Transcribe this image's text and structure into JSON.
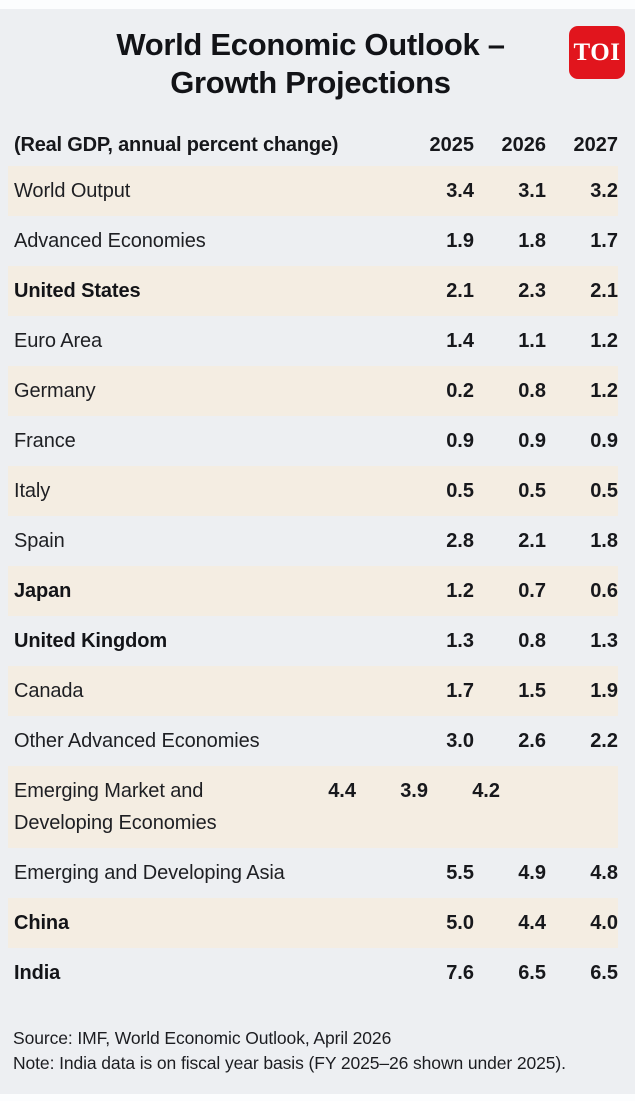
{
  "page": {
    "title_line1": "World Economic Outlook –",
    "title_line2": "Growth Projections",
    "logo_text": "TOI"
  },
  "table_header": {
    "label": "(Real GDP, annual percent change)",
    "years": [
      "2025",
      "2026",
      "2027"
    ]
  },
  "chart_data": {
    "type": "table",
    "title": "World Economic Outlook – Growth Projections",
    "subtitle": "(Real GDP, annual percent change)",
    "columns": [
      "2025",
      "2026",
      "2027"
    ],
    "rows": [
      {
        "label": "World Output",
        "bold": false,
        "values": [
          "3.4",
          "3.1",
          "3.2"
        ]
      },
      {
        "label": "Advanced Economies",
        "bold": false,
        "values": [
          "1.9",
          "1.8",
          "1.7"
        ]
      },
      {
        "label": "United States",
        "bold": true,
        "values": [
          "2.1",
          "2.3",
          "2.1"
        ]
      },
      {
        "label": "Euro Area",
        "bold": false,
        "values": [
          "1.4",
          "1.1",
          "1.2"
        ]
      },
      {
        "label": "Germany",
        "bold": false,
        "values": [
          "0.2",
          "0.8",
          "1.2"
        ]
      },
      {
        "label": "France",
        "bold": false,
        "values": [
          "0.9",
          "0.9",
          "0.9"
        ]
      },
      {
        "label": "Italy",
        "bold": false,
        "values": [
          "0.5",
          "0.5",
          "0.5"
        ]
      },
      {
        "label": "Spain",
        "bold": false,
        "values": [
          "2.8",
          "2.1",
          "1.8"
        ]
      },
      {
        "label": "Japan",
        "bold": true,
        "values": [
          "1.2",
          "0.7",
          "0.6"
        ]
      },
      {
        "label": "United Kingdom",
        "bold": true,
        "values": [
          "1.3",
          "0.8",
          "1.3"
        ]
      },
      {
        "label": "Canada",
        "bold": false,
        "values": [
          "1.7",
          "1.5",
          "1.9"
        ]
      },
      {
        "label": "Other Advanced Economies",
        "bold": false,
        "values": [
          "3.0",
          "2.6",
          "2.2"
        ]
      },
      {
        "label": "Emerging Market and Developing Economies",
        "bold": false,
        "two_line": true,
        "values": [
          "4.4",
          "3.9",
          "4.2"
        ]
      },
      {
        "label": "Emerging and Developing Asia",
        "bold": false,
        "values": [
          "5.5",
          "4.9",
          "4.8"
        ]
      },
      {
        "label": "China",
        "bold": true,
        "values": [
          "5.0",
          "4.4",
          "4.0"
        ]
      },
      {
        "label": "India",
        "bold": true,
        "values": [
          "7.6",
          "6.5",
          "6.5"
        ]
      }
    ],
    "source": "Source: IMF, World Economic Outlook, April 2026",
    "note": "Note: India data is on fiscal year basis (FY 2025–26 shown under 2025).",
    "legend_position": "none",
    "grid": false
  },
  "colors": {
    "accent_red": "#e1151d",
    "row_beige": "#f4ede2",
    "background": "#edeff2",
    "text": "#17181c"
  }
}
